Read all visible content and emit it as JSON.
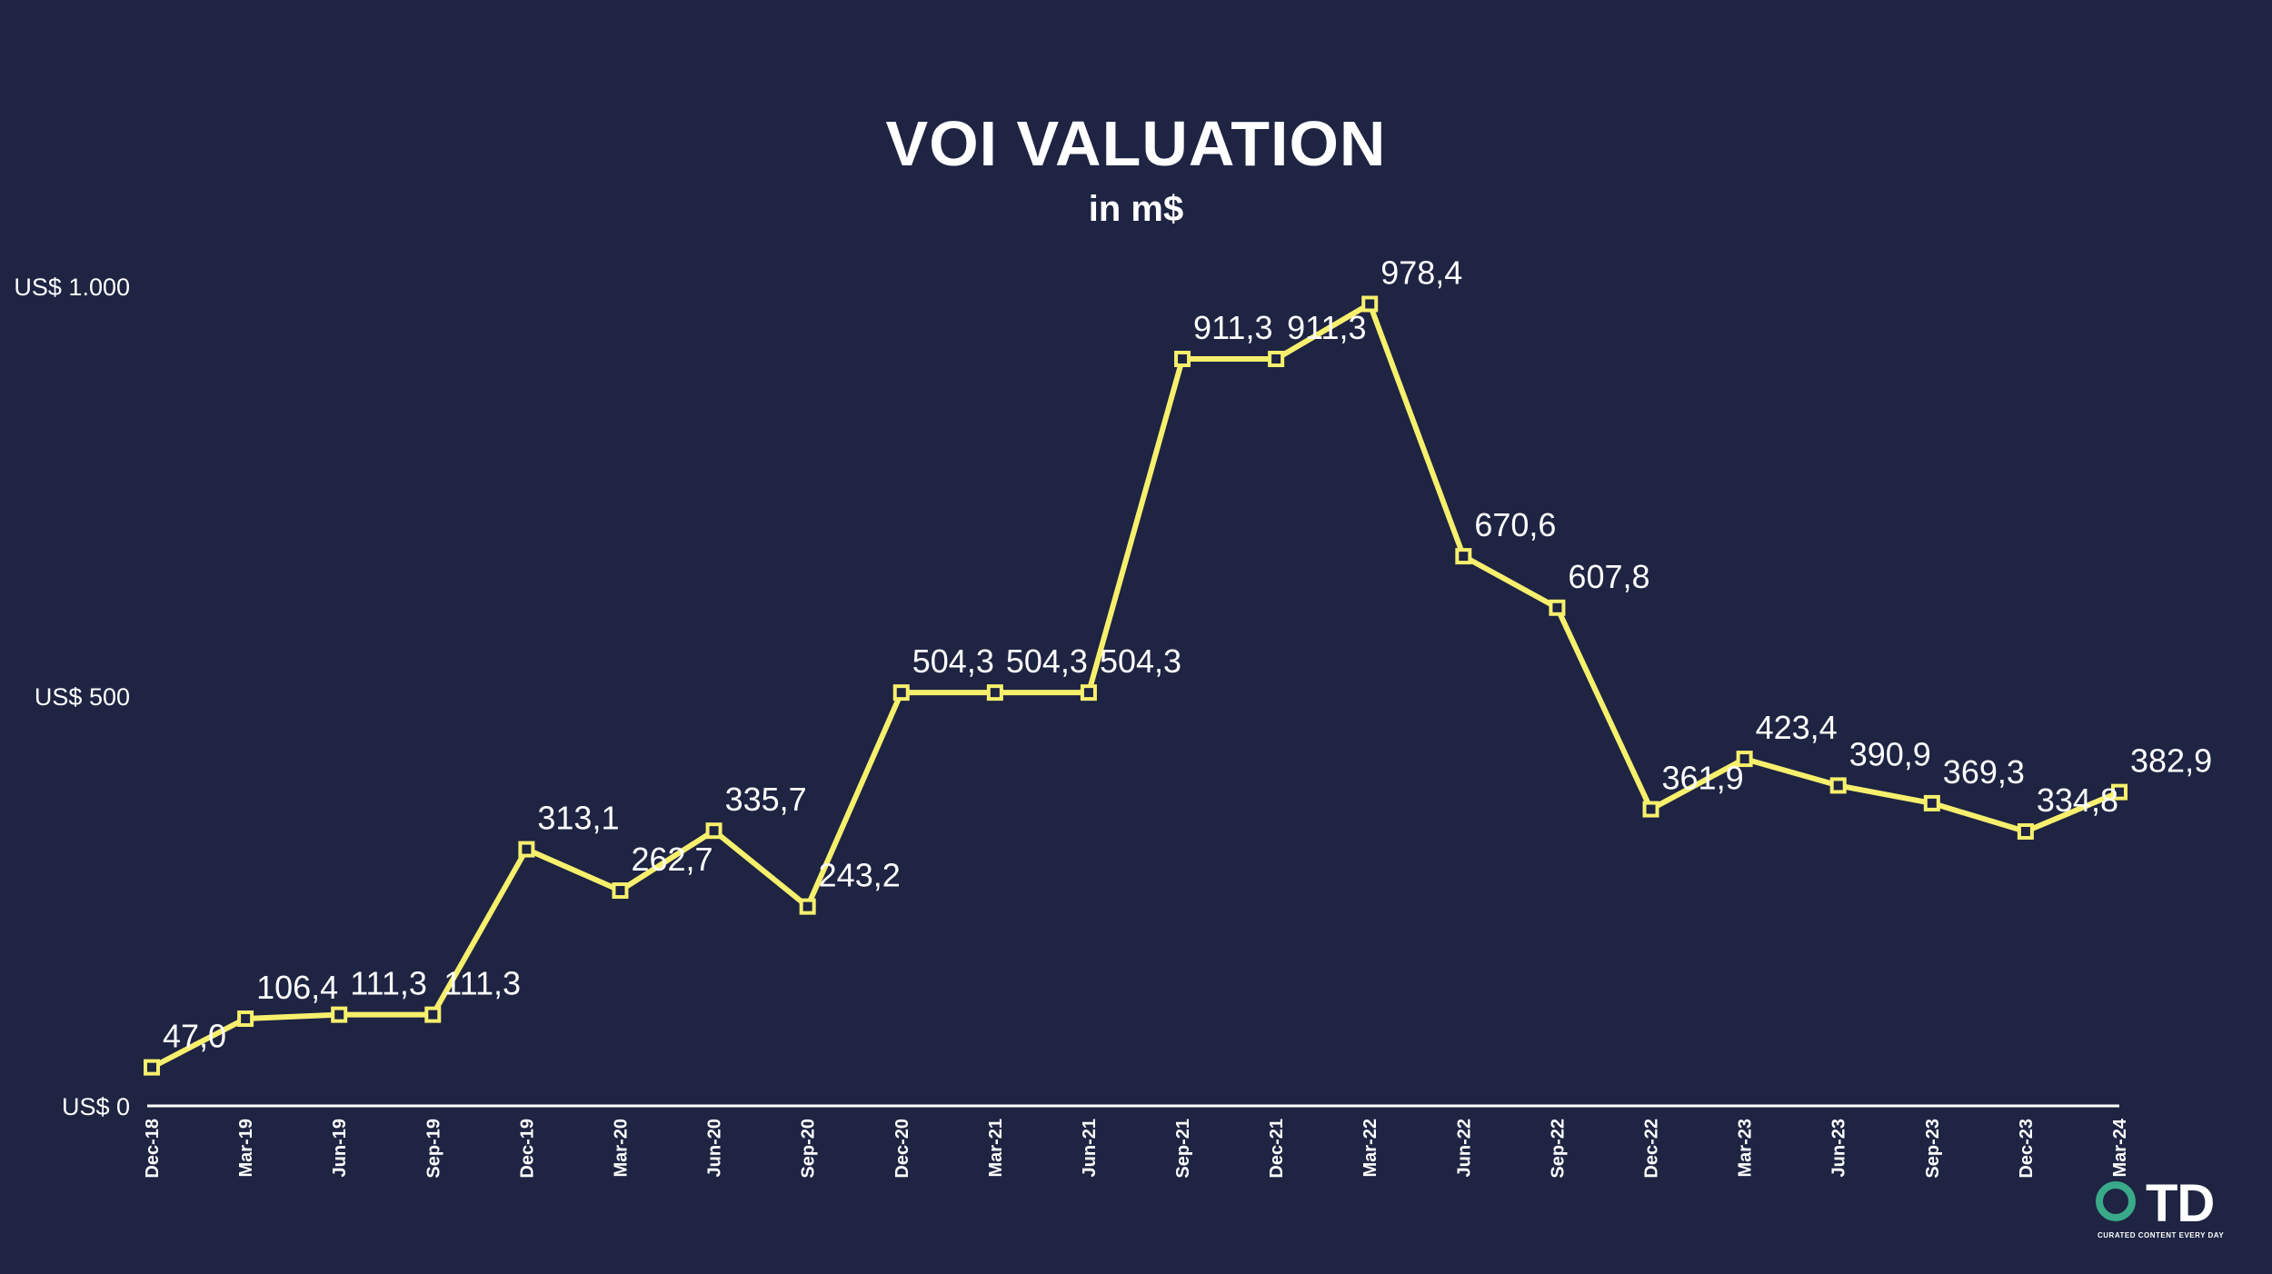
{
  "chart_data": {
    "type": "line",
    "title": "VOI VALUATION",
    "subtitle": "in m$",
    "xlabel": "",
    "ylabel": "",
    "ylim": [
      0,
      1000
    ],
    "grid": false,
    "y_ticks": [
      {
        "value": 0,
        "label": "US$ 0"
      },
      {
        "value": 500,
        "label": "US$ 500"
      },
      {
        "value": 1000,
        "label": "US$ 1.000"
      }
    ],
    "categories": [
      "Dec-18",
      "Mar-19",
      "Jun-19",
      "Sep-19",
      "Dec-19",
      "Mar-20",
      "Jun-20",
      "Sep-20",
      "Dec-20",
      "Mar-21",
      "Jun-21",
      "Sep-21",
      "Dec-21",
      "Mar-22",
      "Jun-22",
      "Sep-22",
      "Dec-22",
      "Mar-23",
      "Jun-23",
      "Sep-23",
      "Dec-23",
      "Mar-24"
    ],
    "series": [
      {
        "values": [
          47.0,
          106.4,
          111.3,
          111.3,
          313.1,
          262.7,
          335.7,
          243.2,
          504.3,
          504.3,
          504.3,
          911.3,
          911.3,
          978.4,
          670.6,
          607.8,
          361.9,
          423.4,
          390.9,
          369.3,
          334.8,
          382.9
        ],
        "labels": [
          "47,0",
          "106,4",
          "111,3",
          "111,3",
          "313,1",
          "262,7",
          "335,7",
          "243,2",
          "504,3",
          "504,3",
          "504,3",
          "911,3",
          "911,3",
          "978,4",
          "670,6",
          "607,8",
          "361,9",
          "423,4",
          "390,9",
          "369,3",
          "334,8",
          "382,9"
        ],
        "color": "#f7f06d"
      }
    ]
  },
  "logo": {
    "text": "TD",
    "tagline": "CURATED CONTENT EVERY DAY",
    "ring_color": "#39a98a"
  }
}
